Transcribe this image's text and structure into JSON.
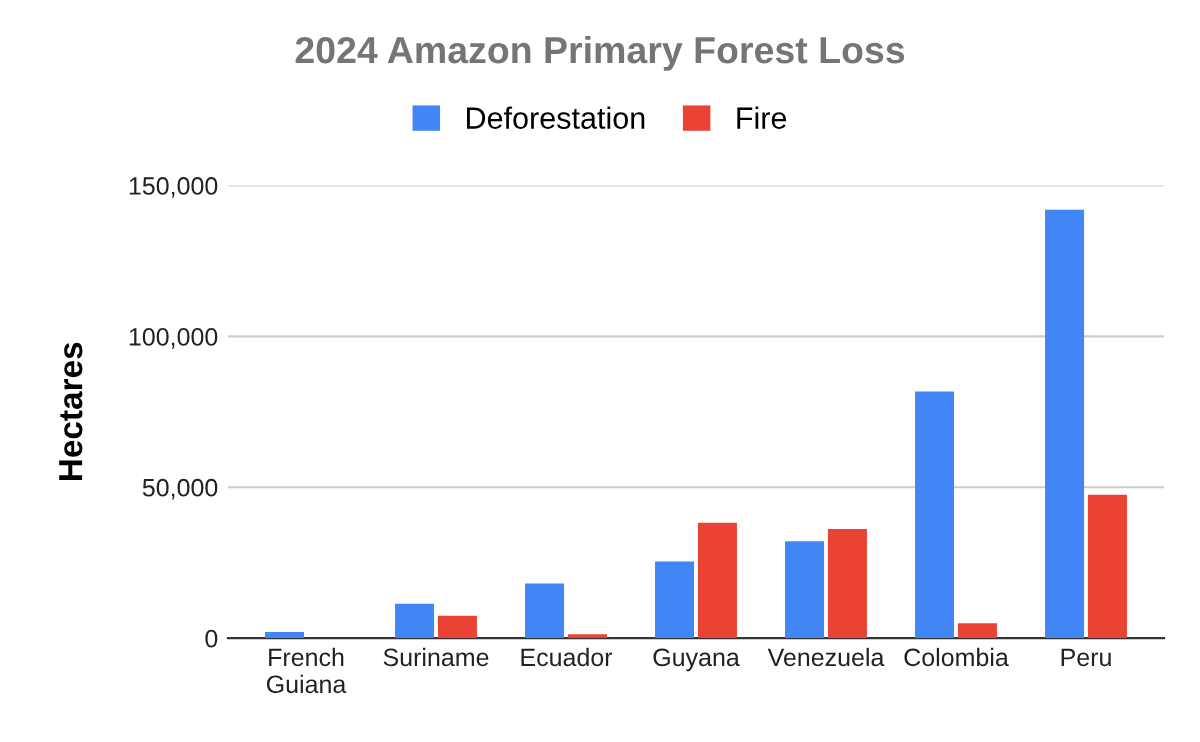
{
  "chart_data": {
    "type": "bar",
    "title": "2024 Amazon Primary Forest Loss",
    "ylabel": "Hectares",
    "categories": [
      "French\nGuiana",
      "Suriname",
      "Ecuador",
      "Guyana",
      "Venezuela",
      "Colombia",
      "Peru"
    ],
    "series": [
      {
        "name": "Deforestation",
        "color": "#4285f4",
        "values": [
          2000,
          11400,
          18100,
          25400,
          32100,
          81700,
          142000
        ]
      },
      {
        "name": "Fire",
        "color": "#ea4335",
        "values": [
          0,
          7400,
          1300,
          38200,
          36200,
          4900,
          47500
        ]
      }
    ],
    "ylim": [
      0,
      150000
    ],
    "yticks": [
      {
        "value": 0,
        "label": "0"
      },
      {
        "value": 50000,
        "label": "50,000"
      },
      {
        "value": 100000,
        "label": "100,000"
      },
      {
        "value": 150000,
        "label": "150,000"
      }
    ],
    "grid": "y",
    "legend": "top"
  }
}
